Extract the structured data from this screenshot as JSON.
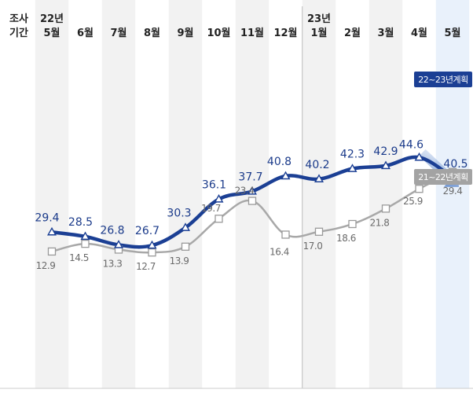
{
  "chart_data": {
    "type": "line",
    "header": {
      "row_label_top": "조사",
      "row_label_bottom": "기간"
    },
    "categories": [
      {
        "year": "22년",
        "month": "5월"
      },
      {
        "year": "",
        "month": "6월"
      },
      {
        "year": "",
        "month": "7월"
      },
      {
        "year": "",
        "month": "8월"
      },
      {
        "year": "",
        "month": "9월"
      },
      {
        "year": "",
        "month": "10월"
      },
      {
        "year": "",
        "month": "11월"
      },
      {
        "year": "",
        "month": "12월"
      },
      {
        "year": "23년",
        "month": "1월"
      },
      {
        "year": "",
        "month": "2월"
      },
      {
        "year": "",
        "month": "3월"
      },
      {
        "year": "",
        "month": "4월"
      },
      {
        "year": "",
        "month": "5월"
      }
    ],
    "series": [
      {
        "name": "22~23년계획",
        "values": [
          29.4,
          28.5,
          26.8,
          26.7,
          30.3,
          36.1,
          37.7,
          40.8,
          40.2,
          42.3,
          42.9,
          44.6,
          40.5
        ],
        "labels": [
          "29.4",
          "28.5",
          "26.8",
          "26.7",
          "30.3",
          "36.1",
          "37.7",
          "40.8",
          "40.2",
          "42.3",
          "42.9",
          "44.6",
          "40.5"
        ],
        "color": "#1b3f94",
        "marker": "triangle"
      },
      {
        "name": "21~22년계획",
        "values": [
          12.9,
          14.5,
          13.3,
          12.7,
          13.9,
          19.7,
          23.4,
          16.4,
          17.0,
          18.6,
          21.8,
          25.9,
          29.4
        ],
        "labels": [
          "12.9",
          "14.5",
          "13.3",
          "12.7",
          "13.9",
          "19.7",
          "23.4",
          "16.4",
          "17.0",
          "18.6",
          "21.8",
          "25.9",
          "29.4"
        ],
        "color": "#a8a8a8",
        "marker": "square"
      }
    ],
    "ylim": [
      0,
      50
    ],
    "highlight_category_index": 12,
    "colors": {
      "stripe": "#f2f2f2",
      "highlight_column": "#e9f1fb",
      "divider": "#bbbbbb",
      "arrow": "#5b85c7"
    }
  }
}
